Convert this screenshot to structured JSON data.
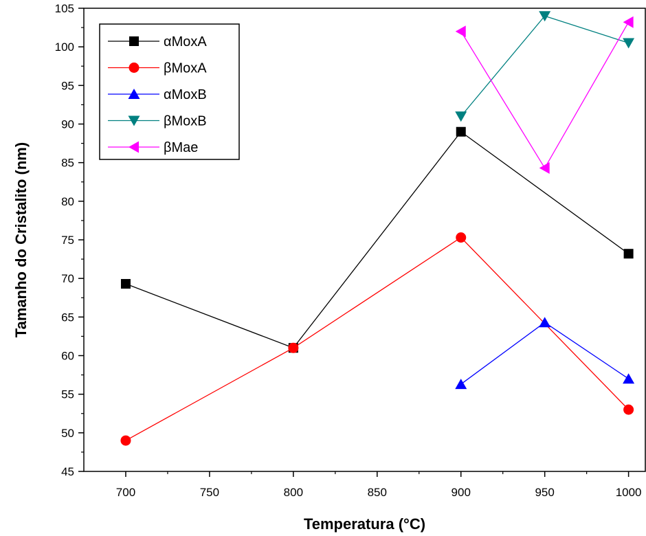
{
  "chart_data": {
    "type": "line",
    "xlabel": "Temperatura (°C)",
    "ylabel": "Tamanho do Cristalito (nm)",
    "xlim": [
      675,
      1010
    ],
    "ylim": [
      45,
      105
    ],
    "xticks": [
      700,
      750,
      800,
      850,
      900,
      950,
      1000
    ],
    "yticks": [
      45,
      50,
      55,
      60,
      65,
      70,
      75,
      80,
      85,
      90,
      95,
      100,
      105
    ],
    "grid": false,
    "legend_position": "top-left",
    "series": [
      {
        "name": "αMoxA",
        "color": "#000000",
        "marker": "square",
        "x": [
          700,
          800,
          900,
          1000
        ],
        "y": [
          69.3,
          61.0,
          89.0,
          73.2
        ]
      },
      {
        "name": "βMoxA",
        "color": "#ff0000",
        "marker": "circle",
        "x": [
          700,
          800,
          900,
          1000
        ],
        "y": [
          49.0,
          61.0,
          75.3,
          53.0
        ]
      },
      {
        "name": "αMoxB",
        "color": "#0000ff",
        "marker": "triangle-up",
        "x": [
          900,
          950,
          1000
        ],
        "y": [
          56.3,
          64.3,
          57.0
        ]
      },
      {
        "name": "βMoxB",
        "color": "#008080",
        "marker": "triangle-down",
        "x": [
          900,
          950,
          1000
        ],
        "y": [
          91.0,
          104.0,
          100.5
        ]
      },
      {
        "name": "βMae",
        "color": "#ff00ff",
        "marker": "triangle-left",
        "x": [
          900,
          950,
          1000
        ],
        "y": [
          102.0,
          84.3,
          103.2
        ]
      }
    ]
  }
}
